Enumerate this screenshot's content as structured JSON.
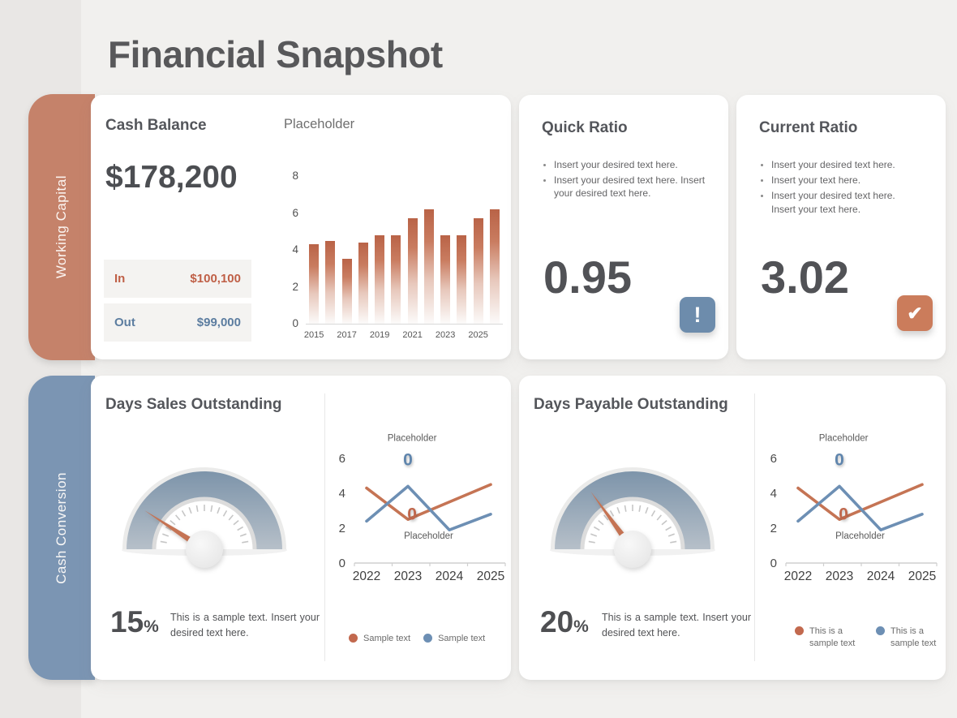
{
  "page": {
    "title": "Financial Snapshot"
  },
  "colors": {
    "accent_orange": "#c5826a",
    "accent_orange_deep": "#bf5f46",
    "accent_blue": "#7b95b3",
    "accent_blue_deep": "#5c7da0",
    "icon_blue": "#6d8cac",
    "icon_orange": "#cb7c5b",
    "slide_bg": "#f1f0ee",
    "gutter_bg": "#e9e7e5",
    "card_bg": "#ffffff",
    "text_dark": "#515256"
  },
  "sidebar": {
    "tabs": [
      {
        "label": "Working Capital",
        "color": "#c5826a"
      },
      {
        "label": "Cash Conversion",
        "color": "#7b95b3"
      }
    ]
  },
  "cash_balance": {
    "title": "Cash Balance",
    "amount": "$178,200",
    "flows": [
      {
        "label": "In",
        "value": "$100,100"
      },
      {
        "label": "Out",
        "value": "$99,000"
      }
    ]
  },
  "quick_ratio": {
    "title": "Quick Ratio",
    "bullets": [
      "Insert your desired text here.",
      "Insert your desired text here. Insert your desired text here."
    ],
    "value": "0.95",
    "badge_glyph": "!"
  },
  "current_ratio": {
    "title": "Current Ratio",
    "bullets": [
      "Insert your desired text here.",
      "Insert your text here.",
      "Insert your desired text here. Insert your text here."
    ],
    "value": "3.02",
    "badge_glyph": "✔"
  },
  "days_sales_outstanding": {
    "title": "Days Sales Outstanding",
    "percent": "15",
    "percent_sign": "%",
    "description": "This is a sample text. Insert your desired text here.",
    "gauge_needle_deg": 147,
    "legend": [
      {
        "label": "Sample text",
        "color": "#c2694e"
      },
      {
        "label": "Sample text",
        "color": "#6d8fb4"
      }
    ]
  },
  "days_payable_outstanding": {
    "title": "Days Payable Outstanding",
    "percent": "20",
    "percent_sign": "%",
    "description": "This is a sample text. Insert your desired text here.",
    "gauge_needle_deg": 126,
    "legend": [
      {
        "label": "This is a sample text",
        "color": "#c2694e"
      },
      {
        "label": "This is a sample text",
        "color": "#6d8fb4"
      }
    ]
  },
  "chart_data": [
    {
      "id": "cash-balance-bars",
      "type": "bar",
      "title": "Placeholder",
      "x": [
        2015,
        2016,
        2017,
        2018,
        2019,
        2020,
        2021,
        2022,
        2023,
        2024,
        2025,
        2026
      ],
      "values": [
        4.3,
        4.5,
        3.5,
        4.4,
        4.8,
        4.8,
        5.7,
        6.2,
        4.8,
        4.8,
        5.7,
        6.2
      ],
      "xtick_labels": [
        "2015",
        "2017",
        "2019",
        "2021",
        "2023",
        "2025"
      ],
      "yticks": [
        0,
        2,
        4,
        6,
        8
      ],
      "ylim": [
        0,
        8
      ],
      "bar_color": "#c2694c",
      "grid": false
    },
    {
      "id": "dso-trend",
      "type": "line",
      "x": [
        2022,
        2023,
        2024,
        2025
      ],
      "series": [
        {
          "name": "Sample text",
          "color": "#c57454",
          "values": [
            4.3,
            2.5,
            3.5,
            4.5
          ]
        },
        {
          "name": "Sample text",
          "color": "#6d8fb4",
          "values": [
            2.4,
            4.4,
            1.9,
            2.8
          ]
        }
      ],
      "yticks": [
        0,
        2,
        4,
        6
      ],
      "ylim": [
        0,
        7.3
      ],
      "grid": false,
      "legend_position": "bottom",
      "annotations": [
        {
          "text": "Placeholder",
          "x": 2023.1,
          "y": 7.0,
          "color": "#5a5a5a",
          "size": 11.5,
          "bold": false
        },
        {
          "text": "0",
          "x": 2023.0,
          "y": 5.6,
          "color": "#5f85ad",
          "size": 21,
          "bold": true
        },
        {
          "text": "0",
          "x": 2023.1,
          "y": 2.5,
          "color": "#c0674c",
          "size": 21,
          "bold": true
        },
        {
          "text": "Placeholder",
          "x": 2023.5,
          "y": 1.4,
          "color": "#5a5a5a",
          "size": 11.5,
          "bold": false
        }
      ]
    },
    {
      "id": "dpo-trend",
      "type": "line",
      "x": [
        2022,
        2023,
        2024,
        2025
      ],
      "series": [
        {
          "name": "This is a sample text",
          "color": "#c57454",
          "values": [
            4.3,
            2.5,
            3.5,
            4.5
          ]
        },
        {
          "name": "This is a sample text",
          "color": "#6d8fb4",
          "values": [
            2.4,
            4.4,
            1.9,
            2.8
          ]
        }
      ],
      "yticks": [
        0,
        2,
        4,
        6
      ],
      "ylim": [
        0,
        7.3
      ],
      "grid": false,
      "legend_position": "bottom",
      "annotations": [
        {
          "text": "Placeholder",
          "x": 2023.1,
          "y": 7.0,
          "color": "#5a5a5a",
          "size": 11.5,
          "bold": false
        },
        {
          "text": "0",
          "x": 2023.0,
          "y": 5.6,
          "color": "#5f85ad",
          "size": 21,
          "bold": true
        },
        {
          "text": "0",
          "x": 2023.1,
          "y": 2.5,
          "color": "#c0674c",
          "size": 21,
          "bold": true
        },
        {
          "text": "Placeholder",
          "x": 2023.5,
          "y": 1.4,
          "color": "#5a5a5a",
          "size": 11.5,
          "bold": false
        }
      ]
    }
  ]
}
